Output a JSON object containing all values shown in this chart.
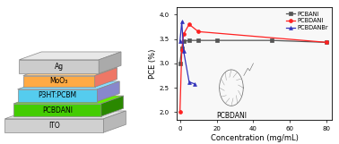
{
  "left_layers": [
    {
      "label": "ITO",
      "facecolor": "#d0d0d0",
      "topcolor": "#e0e0e0",
      "rightcolor": "#b8b8b8"
    },
    {
      "label": "PCBDANI",
      "facecolor": "#44cc00",
      "topcolor": "#66ee00",
      "rightcolor": "#2a8800"
    },
    {
      "label": "P3HT:PCBM",
      "facecolor": "#55ccee",
      "topcolor": "#88ddff",
      "rightcolor": "#8888cc"
    },
    {
      "label": "MoO₃",
      "facecolor": "#ffaa44",
      "topcolor": "#ffcc88",
      "rightcolor": "#ee7766"
    },
    {
      "label": "Ag",
      "facecolor": "#cccccc",
      "topcolor": "#e8e8e8",
      "rightcolor": "#aaaaaa"
    }
  ],
  "series": [
    {
      "label": "PCBANI",
      "color": "#555555",
      "marker": "s",
      "x": [
        0,
        1,
        2,
        5,
        10,
        20,
        50,
        80
      ],
      "y": [
        3.0,
        3.3,
        3.45,
        3.47,
        3.47,
        3.47,
        3.47,
        3.43
      ]
    },
    {
      "label": "PCBDANI",
      "color": "#ff2020",
      "marker": "o",
      "x": [
        0,
        1,
        2,
        5,
        10,
        80
      ],
      "y": [
        2.0,
        3.28,
        3.6,
        3.8,
        3.65,
        3.43
      ]
    },
    {
      "label": "PCBDANBr",
      "color": "#3333bb",
      "marker": "^",
      "x": [
        0,
        1,
        2,
        5,
        8
      ],
      "y": [
        3.45,
        3.85,
        3.25,
        2.62,
        2.58
      ]
    }
  ],
  "ylabel": "PCE (%)",
  "xlabel": "Concentration (mg/mL)",
  "ylim": [
    1.85,
    4.15
  ],
  "xlim": [
    -2,
    83
  ],
  "yticks": [
    2.0,
    2.5,
    3.0,
    3.5,
    4.0
  ],
  "xticks": [
    0,
    20,
    40,
    60,
    80
  ],
  "annotation": "PCBDANI",
  "bg_color": "#f8f8f8"
}
